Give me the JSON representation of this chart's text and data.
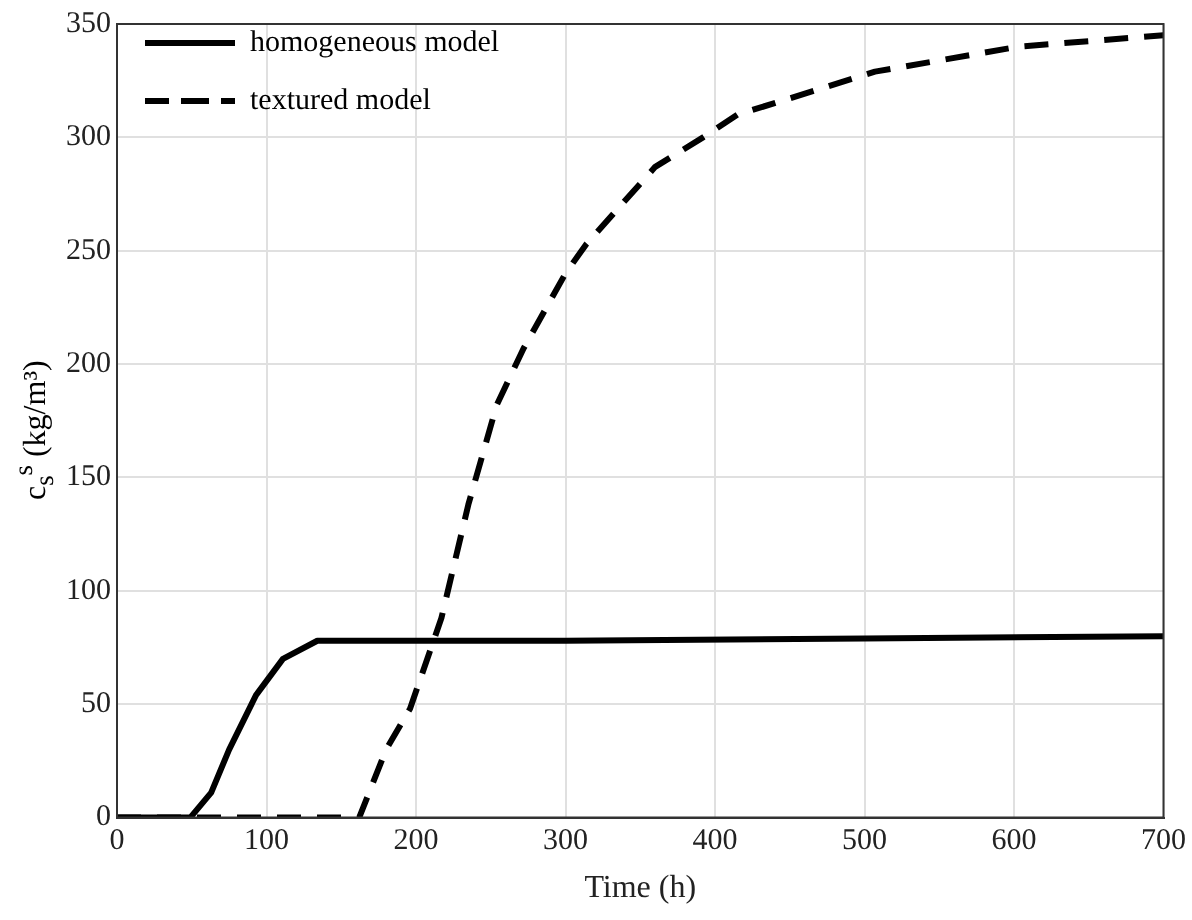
{
  "chart_data": {
    "type": "line",
    "xlabel": "Time (h)",
    "ylabel": "c$_{s}$$^{s}$ (kg/m³)",
    "xlim": [
      0,
      700
    ],
    "ylim": [
      0,
      350
    ],
    "xticks": [
      0,
      100,
      200,
      300,
      400,
      500,
      600,
      700
    ],
    "yticks": [
      0,
      50,
      100,
      150,
      200,
      250,
      300,
      350
    ],
    "grid": true,
    "legend": "top left",
    "marker": "none",
    "series": [
      {
        "name": "homogeneous model",
        "color": "#000000",
        "line_style": "solid",
        "x": [
          0,
          49,
          63,
          75,
          93,
          111,
          134,
          150,
          300,
          500,
          700
        ],
        "values": [
          0,
          0,
          11,
          30,
          54,
          70,
          78,
          78,
          78,
          79,
          80
        ]
      },
      {
        "name": "textured model",
        "color": "#000000",
        "line_style": "dashed",
        "x": [
          0,
          162,
          180,
          196,
          217,
          235,
          254,
          272,
          300,
          314,
          360,
          392,
          415,
          507,
          603,
          700
        ],
        "values": [
          0,
          0,
          30,
          48,
          88,
          138,
          182,
          207,
          240,
          253,
          287,
          300,
          310,
          329,
          340,
          345
        ]
      }
    ]
  }
}
